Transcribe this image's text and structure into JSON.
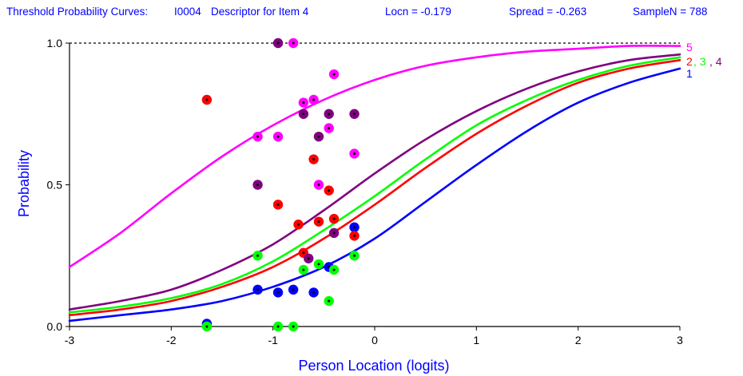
{
  "chart_data": {
    "type": "line",
    "title_parts": [
      "Threshold Probability Curves:",
      "I0004",
      "Descriptor for Item 4",
      "Locn = -0.179",
      "Spread = -0.263",
      "SampleN = 788"
    ],
    "xlabel": "Person Location (logits)",
    "ylabel": "Probability",
    "xlim": [
      -3,
      3
    ],
    "ylim": [
      0,
      1
    ],
    "x_ticks": [
      -3,
      -2,
      -1,
      0,
      1,
      2,
      3
    ],
    "x_tick_labels": [
      "-3",
      "-2",
      "-1",
      "0",
      "1",
      "2",
      "3"
    ],
    "y_ticks": [
      0,
      0.5,
      1
    ],
    "y_tick_labels": [
      "0.0",
      "0.5",
      "1.0"
    ],
    "reference_line_y": 1.0,
    "series": [
      {
        "name": "1",
        "color": "#0000ff",
        "x": [
          -3,
          -2.5,
          -2,
          -1.5,
          -1,
          -0.5,
          0,
          0.5,
          1,
          1.5,
          2,
          2.5,
          3
        ],
        "y": [
          0.02,
          0.04,
          0.06,
          0.09,
          0.14,
          0.21,
          0.31,
          0.44,
          0.57,
          0.69,
          0.79,
          0.86,
          0.91
        ],
        "observed": [
          {
            "x": -1.65,
            "y": 0.01
          },
          {
            "x": -1.15,
            "y": 0.13
          },
          {
            "x": -0.95,
            "y": 0.12
          },
          {
            "x": -0.8,
            "y": 0.13
          },
          {
            "x": -0.6,
            "y": 0.12
          },
          {
            "x": -0.45,
            "y": 0.21
          },
          {
            "x": -0.2,
            "y": 0.35
          }
        ]
      },
      {
        "name": "2",
        "color": "#ff0000",
        "x": [
          -3,
          -2.5,
          -2,
          -1.5,
          -1,
          -0.5,
          0,
          0.5,
          1,
          1.5,
          2,
          2.5,
          3
        ],
        "y": [
          0.04,
          0.06,
          0.09,
          0.14,
          0.21,
          0.31,
          0.43,
          0.56,
          0.68,
          0.78,
          0.86,
          0.91,
          0.94
        ],
        "observed": [
          {
            "x": -1.65,
            "y": 0.8
          },
          {
            "x": -0.95,
            "y": 0.43
          },
          {
            "x": -0.75,
            "y": 0.36
          },
          {
            "x": -0.7,
            "y": 0.26
          },
          {
            "x": -0.6,
            "y": 0.59
          },
          {
            "x": -0.55,
            "y": 0.37
          },
          {
            "x": -0.45,
            "y": 0.48
          },
          {
            "x": -0.4,
            "y": 0.38
          },
          {
            "x": -0.2,
            "y": 0.32
          }
        ]
      },
      {
        "name": "3",
        "color": "#00ff00",
        "x": [
          -3,
          -2.5,
          -2,
          -1.5,
          -1,
          -0.5,
          0,
          0.5,
          1,
          1.5,
          2,
          2.5,
          3
        ],
        "y": [
          0.05,
          0.07,
          0.1,
          0.15,
          0.23,
          0.34,
          0.46,
          0.59,
          0.71,
          0.8,
          0.87,
          0.92,
          0.95
        ],
        "observed": [
          {
            "x": -1.65,
            "y": 0.0
          },
          {
            "x": -1.15,
            "y": 0.25
          },
          {
            "x": -0.95,
            "y": 0.0
          },
          {
            "x": -0.8,
            "y": 0.0
          },
          {
            "x": -0.7,
            "y": 0.2
          },
          {
            "x": -0.55,
            "y": 0.22
          },
          {
            "x": -0.45,
            "y": 0.09
          },
          {
            "x": -0.4,
            "y": 0.2
          },
          {
            "x": -0.2,
            "y": 0.25
          }
        ]
      },
      {
        "name": "4",
        "color": "#800080",
        "x": [
          -3,
          -2.5,
          -2,
          -1.5,
          -1,
          -0.5,
          0,
          0.5,
          1,
          1.5,
          2,
          2.5,
          3
        ],
        "y": [
          0.06,
          0.09,
          0.13,
          0.2,
          0.29,
          0.41,
          0.54,
          0.66,
          0.76,
          0.84,
          0.9,
          0.94,
          0.96
        ],
        "observed": [
          {
            "x": -1.15,
            "y": 0.5
          },
          {
            "x": -0.95,
            "y": 1.0
          },
          {
            "x": -0.7,
            "y": 0.75
          },
          {
            "x": -0.65,
            "y": 0.24
          },
          {
            "x": -0.55,
            "y": 0.67
          },
          {
            "x": -0.45,
            "y": 0.75
          },
          {
            "x": -0.4,
            "y": 0.33
          },
          {
            "x": -0.2,
            "y": 0.75
          }
        ]
      },
      {
        "name": "5",
        "color": "#ff00ff",
        "x": [
          -3,
          -2.5,
          -2,
          -1.5,
          -1,
          -0.5,
          0,
          0.5,
          1,
          1.5,
          2,
          2.5,
          3
        ],
        "y": [
          0.21,
          0.33,
          0.47,
          0.6,
          0.71,
          0.8,
          0.87,
          0.92,
          0.95,
          0.97,
          0.98,
          0.99,
          0.99
        ],
        "observed": [
          {
            "x": -1.15,
            "y": 0.67
          },
          {
            "x": -0.95,
            "y": 0.67
          },
          {
            "x": -0.8,
            "y": 1.0
          },
          {
            "x": -0.7,
            "y": 0.79
          },
          {
            "x": -0.6,
            "y": 0.8
          },
          {
            "x": -0.55,
            "y": 0.5
          },
          {
            "x": -0.45,
            "y": 0.7
          },
          {
            "x": -0.4,
            "y": 0.89
          },
          {
            "x": -0.2,
            "y": 0.61
          }
        ]
      }
    ],
    "curve_labels": [
      {
        "text": "5",
        "color": "#ff00ff"
      },
      {
        "text": "2",
        "color": "#ff0000"
      },
      {
        "text": ", 3",
        "color": "#00ff00"
      },
      {
        "text": ", 4",
        "color": "#800080"
      },
      {
        "text": "1",
        "color": "#0000ff"
      }
    ]
  }
}
